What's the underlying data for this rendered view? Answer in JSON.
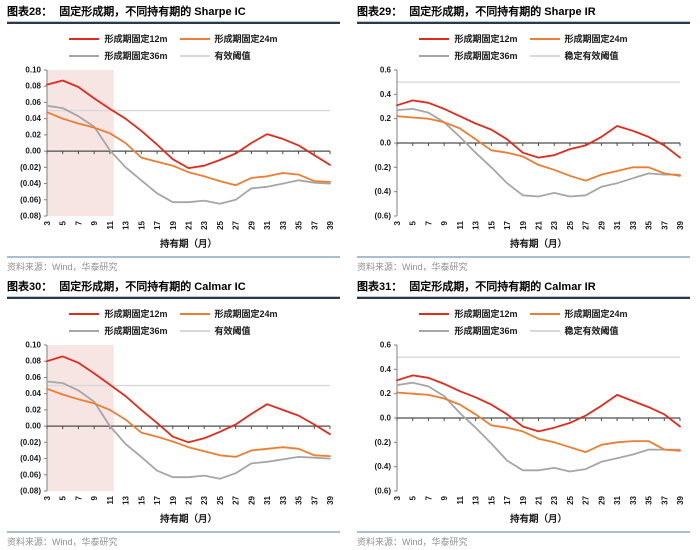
{
  "source_label": "资料来源：Wind，华泰研究",
  "colors": {
    "red": "#e02a1c",
    "orange": "#ed7d31",
    "gray": "#a6a6a6",
    "threshold_line": "#d8d8d8",
    "band_pink": "#f7e5e4",
    "title_rule_dark": "#2e3947",
    "title_rule_light": "#b7c6da",
    "footer_rule": "#a9bdd3",
    "source_text": "#8f8f8f",
    "zero_axis": "#4d4d4d",
    "y_axis": "#7f7f7f"
  },
  "chart_data": [
    {
      "figure_label": "图表28：",
      "title": "固定形成期，不同持有期的 Sharpe IC",
      "type": "line",
      "x": [
        3,
        5,
        7,
        9,
        11,
        13,
        15,
        17,
        19,
        21,
        23,
        25,
        27,
        29,
        31,
        33,
        35,
        37,
        39
      ],
      "xlabel": "持有期（月）",
      "ylim": [
        -0.08,
        0.1
      ],
      "yticks": [
        {
          "v": 0.1,
          "label": "0.10"
        },
        {
          "v": 0.08,
          "label": "0.08"
        },
        {
          "v": 0.06,
          "label": "0.06"
        },
        {
          "v": 0.04,
          "label": "0.04"
        },
        {
          "v": 0.02,
          "label": "0.02"
        },
        {
          "v": 0.0,
          "label": "0.00"
        },
        {
          "v": -0.02,
          "label": "(0.02)"
        },
        {
          "v": -0.04,
          "label": "(0.04)"
        },
        {
          "v": -0.06,
          "label": "(0.06)"
        },
        {
          "v": -0.08,
          "label": "(0.08)"
        }
      ],
      "band": {
        "x_from": 3,
        "x_to": 11,
        "color": "#f7e5e4"
      },
      "series": [
        {
          "key": "12m",
          "name": "形成期固定12m",
          "color": "#e02a1c",
          "values": [
            0.082,
            0.087,
            0.079,
            0.065,
            0.052,
            0.04,
            0.025,
            0.008,
            -0.01,
            -0.021,
            -0.018,
            -0.011,
            -0.003,
            0.01,
            0.021,
            0.015,
            0.007,
            -0.005,
            -0.017
          ]
        },
        {
          "key": "24m",
          "name": "形成期固定24m",
          "color": "#ed7d31",
          "values": [
            0.048,
            0.04,
            0.034,
            0.029,
            0.022,
            0.01,
            -0.008,
            -0.013,
            -0.018,
            -0.026,
            -0.031,
            -0.037,
            -0.042,
            -0.033,
            -0.031,
            -0.027,
            -0.029,
            -0.037,
            -0.038
          ]
        },
        {
          "key": "36m",
          "name": "形成期固定36m",
          "color": "#a6a6a6",
          "values": [
            0.056,
            0.053,
            0.043,
            0.03,
            0.001,
            -0.02,
            -0.036,
            -0.052,
            -0.063,
            -0.063,
            -0.061,
            -0.065,
            -0.06,
            -0.046,
            -0.044,
            -0.04,
            -0.036,
            -0.039,
            -0.04
          ]
        },
        {
          "key": "threshold",
          "name": "有效阈值",
          "color": "#d8d8d8",
          "value": 0.05
        }
      ],
      "source": "资料来源：Wind，华泰研究"
    },
    {
      "figure_label": "图表29：",
      "title": "固定形成期，不同持有期的 Sharpe IR",
      "type": "line",
      "x": [
        3,
        5,
        7,
        9,
        11,
        13,
        15,
        17,
        19,
        21,
        23,
        25,
        27,
        29,
        31,
        33,
        35,
        37,
        39
      ],
      "xlabel": "持有期（月）",
      "ylim": [
        -0.6,
        0.6
      ],
      "yticks": [
        {
          "v": 0.6,
          "label": "0.6"
        },
        {
          "v": 0.4,
          "label": "0.4"
        },
        {
          "v": 0.2,
          "label": "0.2"
        },
        {
          "v": 0.0,
          "label": "0.0"
        },
        {
          "v": -0.2,
          "label": "(0.2)"
        },
        {
          "v": -0.4,
          "label": "(0.4)"
        },
        {
          "v": -0.6,
          "label": "(0.6)"
        }
      ],
      "band": null,
      "series": [
        {
          "key": "12m",
          "name": "形成期固定12m",
          "color": "#e02a1c",
          "values": [
            0.31,
            0.35,
            0.33,
            0.28,
            0.22,
            0.16,
            0.11,
            0.03,
            -0.08,
            -0.12,
            -0.1,
            -0.05,
            -0.02,
            0.05,
            0.14,
            0.1,
            0.05,
            -0.02,
            -0.12
          ]
        },
        {
          "key": "24m",
          "name": "形成期固定24m",
          "color": "#ed7d31",
          "values": [
            0.22,
            0.21,
            0.2,
            0.17,
            0.12,
            0.03,
            -0.06,
            -0.08,
            -0.11,
            -0.18,
            -0.22,
            -0.27,
            -0.31,
            -0.26,
            -0.23,
            -0.2,
            -0.2,
            -0.25,
            -0.27
          ]
        },
        {
          "key": "36m",
          "name": "形成期固定36m",
          "color": "#a6a6a6",
          "values": [
            0.27,
            0.28,
            0.25,
            0.17,
            0.05,
            -0.08,
            -0.2,
            -0.33,
            -0.43,
            -0.44,
            -0.41,
            -0.44,
            -0.43,
            -0.36,
            -0.33,
            -0.29,
            -0.25,
            -0.26,
            -0.26
          ]
        },
        {
          "key": "threshold",
          "name": "稳定有效阈值",
          "color": "#d8d8d8",
          "value": 0.5
        }
      ],
      "source": "资料来源：Wind，华泰研究"
    },
    {
      "figure_label": "图表30：",
      "title": "固定形成期，不同持有期的 Calmar IC",
      "type": "line",
      "x": [
        3,
        5,
        7,
        9,
        11,
        13,
        15,
        17,
        19,
        21,
        23,
        25,
        27,
        29,
        31,
        33,
        35,
        37,
        39
      ],
      "xlabel": "持有期（月）",
      "ylim": [
        -0.08,
        0.1
      ],
      "yticks": [
        {
          "v": 0.1,
          "label": "0.10"
        },
        {
          "v": 0.08,
          "label": "0.08"
        },
        {
          "v": 0.06,
          "label": "0.06"
        },
        {
          "v": 0.04,
          "label": "0.04"
        },
        {
          "v": 0.02,
          "label": "0.02"
        },
        {
          "v": 0.0,
          "label": "0.00"
        },
        {
          "v": -0.02,
          "label": "(0.02)"
        },
        {
          "v": -0.04,
          "label": "(0.04)"
        },
        {
          "v": -0.06,
          "label": "(0.06)"
        },
        {
          "v": -0.08,
          "label": "(0.08)"
        }
      ],
      "band": {
        "x_from": 3,
        "x_to": 11,
        "color": "#f7e5e4"
      },
      "series": [
        {
          "key": "12m",
          "name": "形成期固定12m",
          "color": "#e02a1c",
          "values": [
            0.08,
            0.086,
            0.078,
            0.065,
            0.051,
            0.037,
            0.02,
            0.004,
            -0.013,
            -0.02,
            -0.015,
            -0.007,
            0.002,
            0.015,
            0.027,
            0.02,
            0.013,
            0.002,
            -0.01
          ]
        },
        {
          "key": "24m",
          "name": "形成期固定24m",
          "color": "#ed7d31",
          "values": [
            0.046,
            0.039,
            0.033,
            0.028,
            0.02,
            0.008,
            -0.008,
            -0.013,
            -0.019,
            -0.026,
            -0.031,
            -0.036,
            -0.038,
            -0.03,
            -0.028,
            -0.026,
            -0.028,
            -0.036,
            -0.037
          ]
        },
        {
          "key": "36m",
          "name": "形成期固定36m",
          "color": "#a6a6a6",
          "values": [
            0.055,
            0.053,
            0.044,
            0.03,
            0.0,
            -0.022,
            -0.038,
            -0.055,
            -0.063,
            -0.063,
            -0.061,
            -0.065,
            -0.058,
            -0.046,
            -0.044,
            -0.041,
            -0.038,
            -0.039,
            -0.04
          ]
        },
        {
          "key": "threshold",
          "name": "有效阈值",
          "color": "#d8d8d8",
          "value": 0.05
        }
      ],
      "source": "资料来源：Wind，华泰研究"
    },
    {
      "figure_label": "图表31：",
      "title": "固定形成期，不同持有期的 Calmar IR",
      "type": "line",
      "x": [
        3,
        5,
        7,
        9,
        11,
        13,
        15,
        17,
        19,
        21,
        23,
        25,
        27,
        29,
        31,
        33,
        35,
        37,
        39
      ],
      "xlabel": "持有期（月）",
      "ylim": [
        -0.6,
        0.6
      ],
      "yticks": [
        {
          "v": 0.6,
          "label": "0.6"
        },
        {
          "v": 0.4,
          "label": "0.4"
        },
        {
          "v": 0.2,
          "label": "0.2"
        },
        {
          "v": 0.0,
          "label": "0.0"
        },
        {
          "v": -0.2,
          "label": "(0.2)"
        },
        {
          "v": -0.4,
          "label": "(0.4)"
        },
        {
          "v": -0.6,
          "label": "(0.6)"
        }
      ],
      "band": null,
      "series": [
        {
          "key": "12m",
          "name": "形成期固定12m",
          "color": "#e02a1c",
          "values": [
            0.31,
            0.35,
            0.33,
            0.28,
            0.22,
            0.17,
            0.11,
            0.03,
            -0.07,
            -0.11,
            -0.08,
            -0.04,
            0.02,
            0.1,
            0.19,
            0.14,
            0.09,
            0.03,
            -0.07
          ]
        },
        {
          "key": "24m",
          "name": "形成期固定24m",
          "color": "#ed7d31",
          "values": [
            0.21,
            0.2,
            0.19,
            0.16,
            0.11,
            0.03,
            -0.06,
            -0.08,
            -0.11,
            -0.17,
            -0.2,
            -0.24,
            -0.28,
            -0.22,
            -0.2,
            -0.19,
            -0.19,
            -0.26,
            -0.27
          ]
        },
        {
          "key": "36m",
          "name": "形成期固定36m",
          "color": "#a6a6a6",
          "values": [
            0.27,
            0.29,
            0.26,
            0.18,
            0.04,
            -0.08,
            -0.21,
            -0.35,
            -0.43,
            -0.43,
            -0.41,
            -0.44,
            -0.42,
            -0.36,
            -0.33,
            -0.3,
            -0.26,
            -0.26,
            -0.26
          ]
        },
        {
          "key": "threshold",
          "name": "稳定有效阈值",
          "color": "#d8d8d8",
          "value": 0.5
        }
      ],
      "source": "资料来源：Wind，华泰研究"
    }
  ]
}
